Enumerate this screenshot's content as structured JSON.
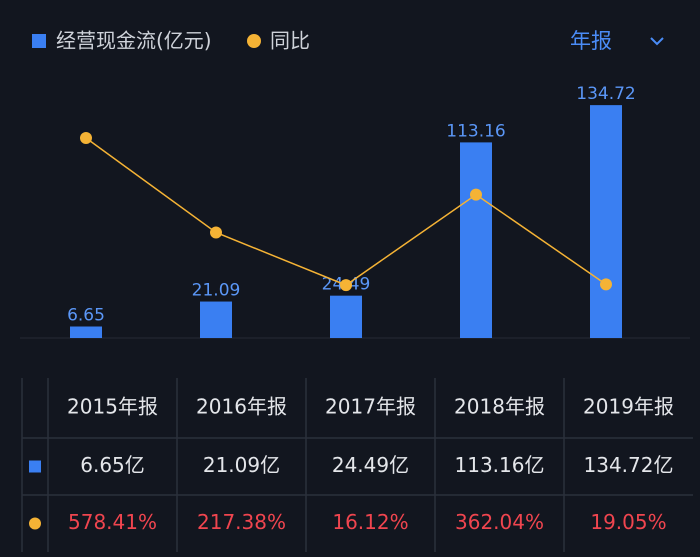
{
  "chart_data": {
    "type": "bar",
    "categories": [
      "2015年报",
      "2016年报",
      "2017年报",
      "2018年报",
      "2019年报"
    ],
    "series": [
      {
        "name": "经营现金流(亿元)",
        "type": "bar",
        "color": "#3a7ff2",
        "values": [
          6.65,
          21.09,
          24.49,
          113.16,
          134.72
        ],
        "value_labels": [
          "6.65亿",
          "21.09亿",
          "24.49亿",
          "113.16亿",
          "134.72亿"
        ]
      },
      {
        "name": "同比",
        "type": "line",
        "axis": "y2",
        "color": "#f5b335",
        "values": [
          578.41,
          217.38,
          16.12,
          362.04,
          19.05
        ],
        "value_labels": [
          "578.41%",
          "217.38%",
          "16.12%",
          "362.04%",
          "19.05%"
        ]
      }
    ],
    "ylim": [
      0,
      140
    ],
    "y2lim": [
      -186,
      739
    ],
    "period_selector": "年报"
  }
}
